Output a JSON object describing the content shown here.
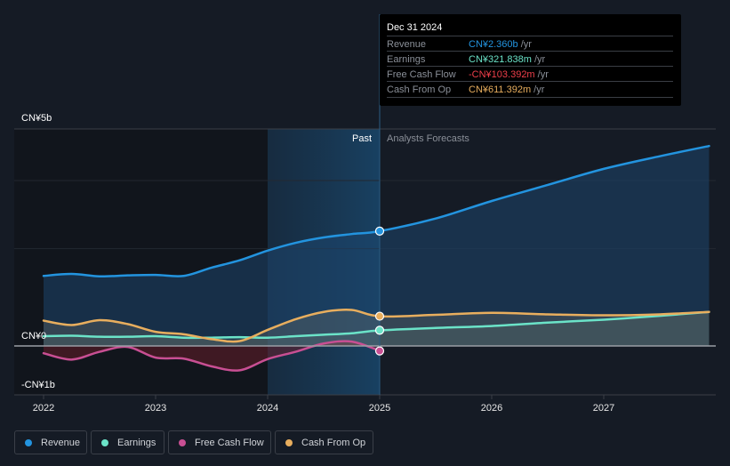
{
  "chart_data": {
    "type": "line",
    "title": "",
    "xlabel": "",
    "ylabel": "",
    "y_unit": "CN¥ billions",
    "ylim": [
      -1.0,
      4.46
    ],
    "xlim": [
      2021.95,
      2027.94
    ],
    "y_ticks": [
      {
        "value": 5,
        "label": "CN¥5b"
      },
      {
        "value": 0,
        "label": "CN¥0"
      },
      {
        "value": -1,
        "label": "-CN¥1b"
      }
    ],
    "x_ticks": [
      {
        "value": 2022,
        "label": "2022"
      },
      {
        "value": 2023,
        "label": "2023"
      },
      {
        "value": 2024,
        "label": "2024"
      },
      {
        "value": 2025,
        "label": "2025"
      },
      {
        "value": 2026,
        "label": "2026"
      },
      {
        "value": 2027,
        "label": "2027"
      }
    ],
    "past_region": {
      "from": 2024.0,
      "to": 2025.0,
      "label": "Past"
    },
    "forecast_label": "Analysts Forecasts",
    "divider_x": 2025.0,
    "series": [
      {
        "name": "Revenue",
        "color": "#2394df",
        "x": [
          2022.0,
          2022.25,
          2022.5,
          2022.75,
          2023.0,
          2023.25,
          2023.5,
          2023.75,
          2024.0,
          2024.25,
          2024.5,
          2024.75,
          2025.0,
          2025.5,
          2026.0,
          2026.5,
          2027.0,
          2027.5,
          2027.94
        ],
        "values": [
          1.44,
          1.48,
          1.43,
          1.45,
          1.46,
          1.44,
          1.61,
          1.76,
          1.96,
          2.12,
          2.23,
          2.3,
          2.36,
          2.62,
          2.98,
          3.31,
          3.64,
          3.9,
          4.11
        ]
      },
      {
        "name": "Earnings",
        "color": "#6be3c8",
        "x": [
          2022.0,
          2022.25,
          2022.5,
          2022.75,
          2023.0,
          2023.25,
          2023.5,
          2023.75,
          2024.0,
          2024.25,
          2024.5,
          2024.75,
          2025.0,
          2025.5,
          2026.0,
          2026.5,
          2027.0,
          2027.5,
          2027.94
        ],
        "values": [
          0.2,
          0.21,
          0.19,
          0.19,
          0.2,
          0.17,
          0.17,
          0.18,
          0.17,
          0.2,
          0.23,
          0.26,
          0.32,
          0.37,
          0.41,
          0.48,
          0.54,
          0.62,
          0.7
        ]
      },
      {
        "name": "Free Cash Flow",
        "color": "#c84f93",
        "x": [
          2022.0,
          2022.25,
          2022.5,
          2022.75,
          2023.0,
          2023.25,
          2023.5,
          2023.75,
          2024.0,
          2024.25,
          2024.5,
          2024.75,
          2025.0
        ],
        "values": [
          -0.15,
          -0.28,
          -0.12,
          -0.02,
          -0.24,
          -0.26,
          -0.42,
          -0.5,
          -0.27,
          -0.12,
          0.05,
          0.09,
          -0.1
        ]
      },
      {
        "name": "Cash From Op",
        "color": "#e8ae5e",
        "x": [
          2022.0,
          2022.25,
          2022.5,
          2022.75,
          2023.0,
          2023.25,
          2023.5,
          2023.75,
          2024.0,
          2024.25,
          2024.5,
          2024.75,
          2025.0,
          2025.5,
          2026.0,
          2026.5,
          2027.0,
          2027.5,
          2027.94
        ],
        "values": [
          0.52,
          0.43,
          0.53,
          0.45,
          0.29,
          0.24,
          0.14,
          0.1,
          0.33,
          0.55,
          0.7,
          0.74,
          0.61,
          0.64,
          0.68,
          0.65,
          0.63,
          0.65,
          0.7
        ]
      }
    ],
    "markers": [
      {
        "series": "Revenue",
        "x": 2025.0,
        "value": 2.36
      },
      {
        "series": "Cash From Op",
        "x": 2025.0,
        "value": 0.611
      },
      {
        "series": "Earnings",
        "x": 2025.0,
        "value": 0.322
      },
      {
        "series": "Free Cash Flow",
        "x": 2025.0,
        "value": -0.103
      }
    ],
    "legend_position": "bottom-left"
  },
  "tooltip": {
    "date": "Dec 31 2024",
    "rows": [
      {
        "name": "Revenue",
        "value": "CN¥2.360b",
        "unit": " /yr",
        "color": "#2394df"
      },
      {
        "name": "Earnings",
        "value": "CN¥321.838m",
        "unit": " /yr",
        "color": "#6be3c8"
      },
      {
        "name": "Free Cash Flow",
        "value": "-CN¥103.392m",
        "unit": " /yr",
        "color": "#ef3f4a"
      },
      {
        "name": "Cash From Op",
        "value": "CN¥611.392m",
        "unit": " /yr",
        "color": "#e8ae5e"
      }
    ]
  },
  "legend": [
    {
      "label": "Revenue",
      "color": "#2394df"
    },
    {
      "label": "Earnings",
      "color": "#6be3c8"
    },
    {
      "label": "Free Cash Flow",
      "color": "#c84f93"
    },
    {
      "label": "Cash From Op",
      "color": "#e8ae5e"
    }
  ]
}
